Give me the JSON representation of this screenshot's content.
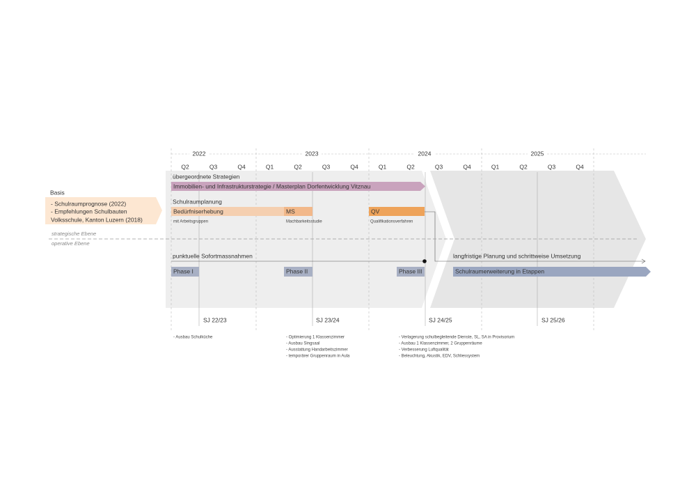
{
  "timeline": {
    "years": [
      "2022",
      "2023",
      "2024",
      "2025"
    ],
    "quarters": [
      "Q2",
      "Q3",
      "Q4",
      "Q1",
      "Q2",
      "Q3",
      "Q4",
      "Q1",
      "Q2",
      "Q3",
      "Q4",
      "Q1",
      "Q2",
      "Q3",
      "Q4"
    ]
  },
  "basis": {
    "title": "Basis",
    "lines": [
      "- Schulraumprognose (2022)",
      "- Empfehlungen Schulbauten",
      "Volksschule, Kanton Luzern (2018)"
    ]
  },
  "levels": {
    "strategic": "strategische Ebene",
    "operative": "operative Ebene"
  },
  "strategies": {
    "title": "übergeordnete Strategien",
    "bar": "Immobilien- und Infrastrukturstrategie / Masterplan Dorfentwicklung Vitznau"
  },
  "schulraumplanung": {
    "title": "Schulraumplanung",
    "bars": [
      {
        "label": "Bedürfniserhebung",
        "note": "mit Arbeitsgruppen"
      },
      {
        "label": "MS",
        "note": "Machbarkeitsstudie"
      },
      {
        "label": "QV",
        "note": "Qualifikationsverfahren"
      }
    ]
  },
  "sofort": {
    "title": "punktuelle Sofortmassnahmen",
    "phases": [
      "Phase I",
      "Phase II",
      "Phase III"
    ],
    "notes": [
      [
        "- Ausbau Schulküche"
      ],
      [
        "- Optimierung 1 Klassenzimmer",
        "- Ausbau Singsaal",
        "- Ausstattung Handarbeitszimmer",
        "- temporärer Gruppenraum in Aula"
      ],
      [
        "- Verlagerung schulbegleitende Dienste, SL, SA in Provisorium",
        "- Ausbau 1 Klassenzimmer, 2 Gruppenräume",
        "- Verbesserung Luftqualität",
        "- Beleuchtung, Akustik, EDV, Schliessystem"
      ]
    ]
  },
  "langfristig": {
    "title": "langfristige Planung und schrittweise Umsetzung",
    "bar": "Schulraumerweiterung in Etappen"
  },
  "school_years": [
    "SJ 22/23",
    "SJ 23/24",
    "SJ 24/25",
    "SJ 25/26"
  ]
}
